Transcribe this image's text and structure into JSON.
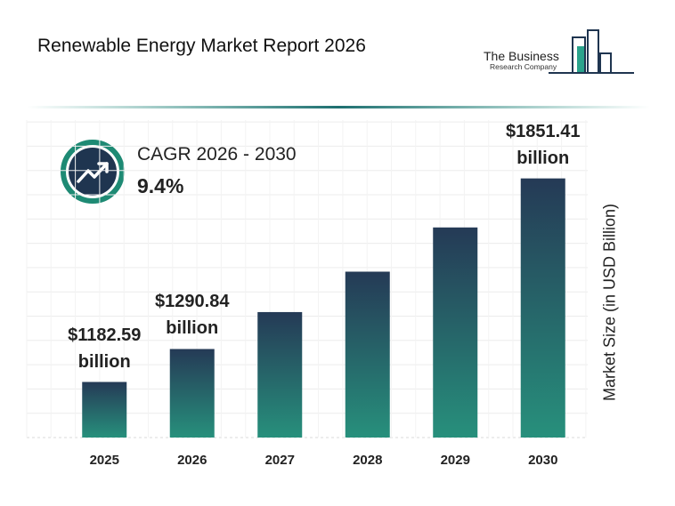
{
  "chart_data": {
    "type": "bar",
    "title": "Renewable Energy Market Report 2026",
    "logo": {
      "line1": "The Business",
      "line2": "Research Company"
    },
    "cagr_label": "CAGR 2026 - 2030",
    "cagr_value": "9.4%",
    "y_label": "Market Size (in USD Billion)",
    "categories": [
      "2025",
      "2026",
      "2027",
      "2028",
      "2029",
      "2030"
    ],
    "values": [
      1182.59,
      1290.84,
      1412.2,
      1545,
      1690.3,
      1851.41
    ],
    "value_labels": [
      "$1182.59 billion",
      "$1290.84 billion",
      null,
      null,
      null,
      "$1851.41 billion"
    ],
    "colors": [
      "#253a56",
      "#27907c"
    ],
    "ylim": [
      1000,
      1900
    ]
  }
}
